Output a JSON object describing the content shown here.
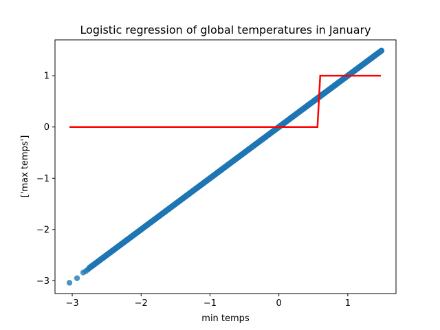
{
  "chart_data": {
    "type": "scatter",
    "title": "Logistic regression of global temperatures in January",
    "xlabel": "min temps",
    "ylabel": "['max temps']",
    "xlim": [
      -3.25,
      1.7
    ],
    "ylim": [
      -3.25,
      1.7
    ],
    "xticks": [
      -3,
      -2,
      -1,
      0,
      1
    ],
    "yticks": [
      -3,
      -2,
      -1,
      0,
      1
    ],
    "xtick_labels": [
      "−3",
      "−2",
      "−1",
      "0",
      "1"
    ],
    "ytick_labels": [
      "−3",
      "−2",
      "−1",
      "0",
      "1"
    ],
    "grid": false,
    "legend": "none",
    "series": [
      {
        "kind": "scatter",
        "color": "#1f77b4",
        "outlier_points": [
          {
            "x": -3.04,
            "y": -3.04
          },
          {
            "x": -2.93,
            "y": -2.95
          },
          {
            "x": -2.84,
            "y": -2.84
          },
          {
            "x": -2.8,
            "y": -2.81
          },
          {
            "x": -2.77,
            "y": -2.78
          }
        ],
        "dense_segment": {
          "x_start": -2.75,
          "x_end": 1.49,
          "y_start": -2.75,
          "y_end": 1.49
        }
      },
      {
        "kind": "line",
        "color": "#ff0000",
        "points": [
          {
            "x": -3.04,
            "y": 0
          },
          {
            "x": 0.56,
            "y": 0
          },
          {
            "x": 0.6,
            "y": 1
          },
          {
            "x": 1.48,
            "y": 1
          }
        ]
      }
    ]
  }
}
